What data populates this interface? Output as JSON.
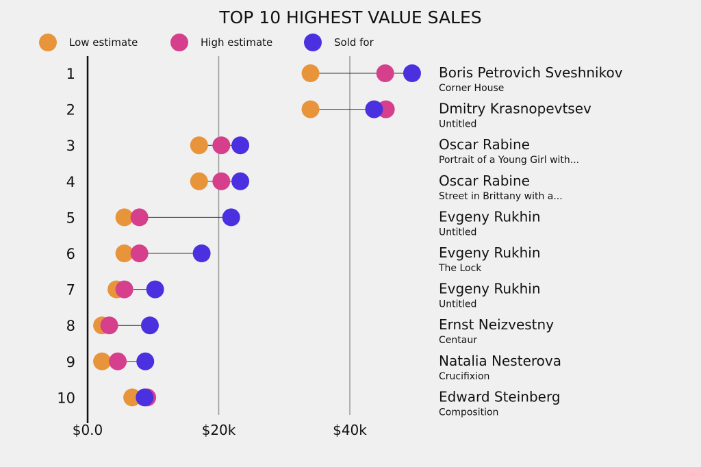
{
  "chart_data": {
    "type": "dumbbell",
    "title": "TOP 10 HIGHEST VALUE SALES",
    "xlabel": "",
    "ylabel": "",
    "xlim": [
      0,
      60
    ],
    "x_unit": "thousand USD",
    "x_ticks": [
      0,
      20,
      40
    ],
    "x_tick_labels": [
      "$0.0",
      "$20k",
      "$40k"
    ],
    "grid": "vertical at 20k and 40k",
    "legend_position": "top",
    "series": [
      {
        "name": "Low estimate",
        "color": "#E8943A",
        "key": "low"
      },
      {
        "name": "High estimate",
        "color": "#D63F8C",
        "key": "high"
      },
      {
        "name": "Sold for",
        "color": "#4B30E0",
        "key": "sold"
      }
    ],
    "rows": [
      {
        "rank": "1",
        "artist": "Boris Petrovich Sveshnikov",
        "work": "Corner House",
        "low": 34.0,
        "high": 45.4,
        "sold": 49.5
      },
      {
        "rank": "2",
        "artist": "Dmitry Krasnopevtsev",
        "work": "Untitled",
        "low": 34.0,
        "high": 45.5,
        "sold": 43.7
      },
      {
        "rank": "3",
        "artist": "Oscar Rabine",
        "work": "Portrait of a Young Girl with...",
        "low": 17.0,
        "high": 20.4,
        "sold": 23.3
      },
      {
        "rank": "4",
        "artist": "Oscar Rabine",
        "work": "Street in Brittany with a...",
        "low": 17.0,
        "high": 20.4,
        "sold": 23.3
      },
      {
        "rank": "5",
        "artist": "Evgeny Rukhin",
        "work": "Untitled",
        "low": 5.6,
        "high": 7.9,
        "sold": 21.9
      },
      {
        "rank": "6",
        "artist": "Evgeny Rukhin",
        "work": "The Lock",
        "low": 5.6,
        "high": 7.9,
        "sold": 17.4
      },
      {
        "rank": "7",
        "artist": "Evgeny Rukhin",
        "work": "Untitled",
        "low": 4.4,
        "high": 5.6,
        "sold": 10.3
      },
      {
        "rank": "8",
        "artist": "Ernst Neizvestny",
        "work": "Centaur",
        "low": 2.2,
        "high": 3.3,
        "sold": 9.5
      },
      {
        "rank": "9",
        "artist": "Natalia Nesterova",
        "work": "Crucifixion",
        "low": 2.2,
        "high": 4.6,
        "sold": 8.8
      },
      {
        "rank": "10",
        "artist": "Edward Steinberg",
        "work": "Composition",
        "low": 6.8,
        "high": 9.1,
        "sold": 8.7
      }
    ]
  }
}
